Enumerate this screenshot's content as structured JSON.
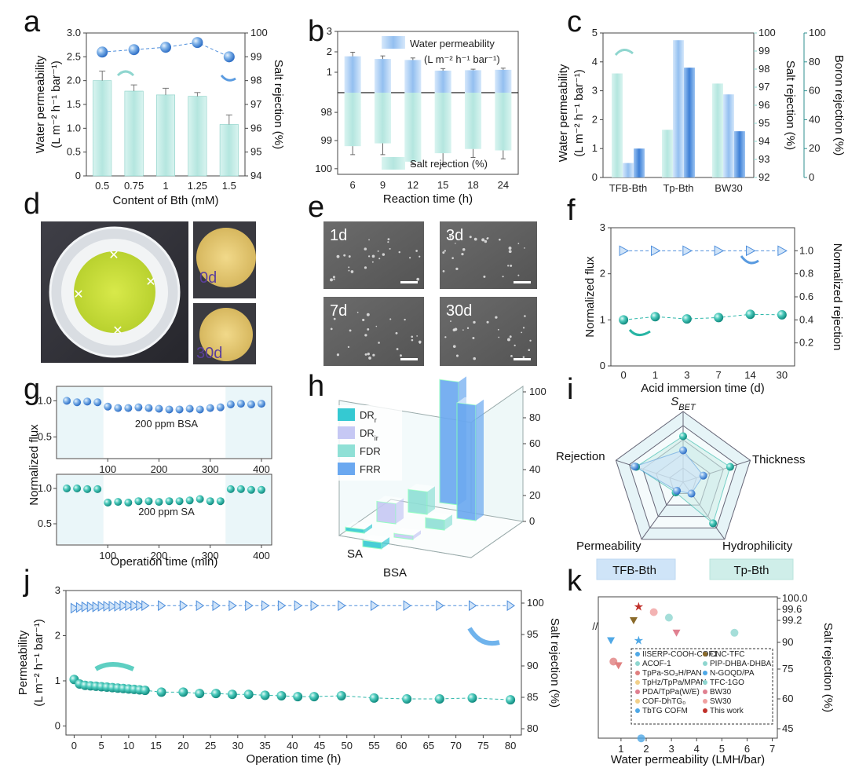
{
  "colors": {
    "barTeal": "#bfe9e4",
    "barTealEdge": "#88cfc6",
    "barBlue": "#a8cdf0",
    "blueDark": "#4f8fdc",
    "tealDark": "#2fb7aa",
    "sphereBlue": "#5a9be0",
    "sphereTeal": "#27b5a4",
    "axisTeal": "#8fd6cf",
    "axisDarkTeal": "#2f8f8f",
    "radarBlueFill": "#cfe4f8",
    "radarTealFill": "#cfeee9",
    "legendDRr": "#35c9d2",
    "legendDRir": "#c6c8f4",
    "legendFDR": "#8fe0d6",
    "legendFRR": "#6aa8f0"
  },
  "panels": {
    "a": "a",
    "b": "b",
    "c": "c",
    "d": "d",
    "e": "e",
    "f": "f",
    "g": "g",
    "h": "h",
    "i": "i",
    "j": "j",
    "k": "k"
  },
  "chart_data": [
    {
      "id": "a",
      "type": "bar",
      "xlabel": "Content of Bth (mM)",
      "ylabel_line1": "Water permeability",
      "ylabel_line2": "(L m⁻² h⁻¹ bar⁻¹)",
      "y2label": "Salt rejection (%)",
      "categories": [
        "0.5",
        "0.75",
        "1",
        "1.25",
        "1.5"
      ],
      "ylim": [
        0,
        3.0
      ],
      "yticks": [
        "0",
        "0.5",
        "1.0",
        "1.5",
        "2.0",
        "2.5",
        "3.0"
      ],
      "y2lim": [
        94,
        100
      ],
      "y2ticks": [
        "94",
        "95",
        "96",
        "97",
        "98",
        "99",
        "100"
      ],
      "permeability": [
        2.0,
        1.78,
        1.7,
        1.67,
        1.08
      ],
      "perm_err": [
        0.2,
        0.13,
        0.14,
        0.08,
        0.2
      ],
      "rejection": [
        99.2,
        99.3,
        99.4,
        99.6,
        99.0
      ]
    },
    {
      "id": "b",
      "type": "bar",
      "xlabel": "Reaction time (h)",
      "categories": [
        "6",
        "9",
        "12",
        "15",
        "18",
        "24"
      ],
      "yticks_top": [
        "1",
        "2",
        "3"
      ],
      "yticks_bottom": [
        "98",
        "99",
        "100"
      ],
      "legend_top_line1": "Water permeability",
      "legend_top_line2": "(L m⁻² h⁻¹ bar⁻¹)",
      "legend_bottom": "Salt rejection (%)",
      "permeability": [
        1.78,
        1.65,
        1.6,
        1.08,
        1.1,
        1.12
      ],
      "perm_err": [
        0.2,
        0.15,
        0.1,
        0.1,
        0.05,
        0.08
      ],
      "rejection": [
        99.2,
        99.1,
        99.75,
        99.45,
        99.3,
        99.35
      ],
      "rej_err": [
        0.3,
        0.4,
        0.1,
        0.4,
        0.3,
        0.3
      ]
    },
    {
      "id": "c",
      "type": "bar",
      "categories": [
        "TFB-Bth",
        "Tp-Bth",
        "BW30"
      ],
      "ylabel_line1": "Water permeability",
      "ylabel_line2": "(L m⁻² h⁻¹ bar⁻¹)",
      "y2label": "Salt rejection (%)",
      "y3label": "Boron rejection (%)",
      "ylim": [
        0,
        5
      ],
      "yticks": [
        "0",
        "1",
        "2",
        "3",
        "4",
        "5"
      ],
      "y2lim": [
        92,
        100
      ],
      "y2ticks": [
        "92",
        "93",
        "94",
        "95",
        "96",
        "97",
        "98",
        "99",
        "100"
      ],
      "y3lim": [
        0,
        100
      ],
      "y3ticks": [
        "0",
        "20",
        "40",
        "60",
        "80",
        "100"
      ],
      "permeability": [
        3.6,
        1.65,
        3.25
      ],
      "salt_rejection": [
        92.8,
        99.6,
        96.6
      ],
      "boron_rejection": [
        20,
        76,
        32
      ]
    },
    {
      "id": "f",
      "type": "line",
      "xlabel": "Acid immersion time (d)",
      "ylabel": "Normalized flux",
      "y2label": "Normalized rejection",
      "categories": [
        "0",
        "1",
        "3",
        "7",
        "14",
        "30"
      ],
      "ylim": [
        0,
        3
      ],
      "yticks": [
        "0",
        "1",
        "2",
        "3"
      ],
      "y2ticks": [
        "0.2",
        "0.4",
        "0.6",
        "0.8",
        "1.0"
      ],
      "flux": [
        1.0,
        1.07,
        1.02,
        1.05,
        1.12,
        1.11
      ],
      "rejection": [
        1.0,
        1.0,
        1.0,
        1.0,
        1.0,
        1.0
      ]
    },
    {
      "id": "g",
      "type": "scatter",
      "xlabel": "Operation time (min)",
      "ylabel": "Normalized flux",
      "xticks": [
        "100",
        "200",
        "300",
        "400"
      ],
      "yticks": [
        "0.5",
        "1.0"
      ],
      "top_label": "200 ppm BSA",
      "bottom_label": "200 ppm SA",
      "bsa_x": [
        20,
        40,
        60,
        80,
        100,
        120,
        140,
        160,
        180,
        200,
        220,
        240,
        260,
        280,
        300,
        320,
        340,
        360,
        380,
        400
      ],
      "bsa_y": [
        1.0,
        0.98,
        0.99,
        0.98,
        0.92,
        0.9,
        0.9,
        0.91,
        0.9,
        0.89,
        0.88,
        0.88,
        0.89,
        0.88,
        0.9,
        0.91,
        0.95,
        0.96,
        0.95,
        0.96
      ],
      "sa_x": [
        20,
        40,
        60,
        80,
        100,
        120,
        140,
        160,
        180,
        200,
        220,
        240,
        260,
        280,
        300,
        320,
        340,
        360,
        380,
        400
      ],
      "sa_y": [
        1.0,
        1.0,
        0.99,
        0.99,
        0.8,
        0.81,
        0.8,
        0.82,
        0.82,
        0.81,
        0.82,
        0.82,
        0.83,
        0.85,
        0.82,
        0.82,
        0.99,
        0.99,
        0.98,
        0.98
      ]
    },
    {
      "id": "h",
      "type": "bar",
      "categories": [
        "SA",
        "BSA"
      ],
      "series_names": [
        "DRr",
        "DRir",
        "FDR",
        "FRR"
      ],
      "legend": [
        "DR",
        "DR",
        "FDR",
        "FRR"
      ],
      "legend_sub": [
        "r",
        "ir",
        "",
        ""
      ],
      "zticks": [
        "0",
        "20",
        "40",
        "60",
        "80",
        "100"
      ],
      "SA": [
        3,
        16,
        18,
        98
      ],
      "BSA": [
        5,
        3,
        8,
        92
      ]
    },
    {
      "id": "i",
      "type": "radar",
      "axes": [
        "SBET",
        "Thickness",
        "Hydrophilicity",
        "Permeability",
        "Rejection"
      ],
      "axis_main": "S",
      "axis_sub": "BET",
      "legend": [
        "TFB-Bth",
        "Tp-Bth"
      ],
      "TFB-Bth": [
        0.45,
        0.3,
        0.2,
        0.15,
        0.72
      ],
      "Tp-Bth": [
        0.65,
        0.7,
        0.72,
        0.18,
        0.7
      ]
    },
    {
      "id": "j",
      "type": "line",
      "xlabel": "Operation time (h)",
      "ylabel_line1": "Permeability",
      "ylabel_line2": "(L m⁻² h⁻¹ bar⁻¹)",
      "y2label": "Salt rejection (%)",
      "xticks": [
        "0",
        "5",
        "10",
        "15",
        "20",
        "25",
        "30",
        "35",
        "40",
        "45",
        "50",
        "55",
        "60",
        "65",
        "70",
        "75",
        "80"
      ],
      "yticks": [
        "0",
        "1",
        "2",
        "3"
      ],
      "y2ticks": [
        "80",
        "85",
        "90",
        "95",
        "100"
      ],
      "perm_x": [
        0,
        1,
        2,
        3,
        4,
        5,
        6,
        7,
        8,
        9,
        10,
        11,
        12,
        13,
        16,
        20,
        23,
        26,
        29,
        32,
        35,
        38,
        41,
        44,
        49,
        55,
        61,
        67,
        73,
        80
      ],
      "perm_y": [
        1.03,
        0.93,
        0.9,
        0.89,
        0.88,
        0.87,
        0.86,
        0.85,
        0.84,
        0.83,
        0.82,
        0.81,
        0.8,
        0.79,
        0.75,
        0.75,
        0.72,
        0.72,
        0.7,
        0.7,
        0.68,
        0.67,
        0.65,
        0.65,
        0.67,
        0.62,
        0.6,
        0.6,
        0.62,
        0.58
      ],
      "rej_x": [
        0,
        1,
        2,
        3,
        4,
        5,
        6,
        7,
        8,
        9,
        10,
        11,
        12,
        13,
        16,
        20,
        23,
        26,
        29,
        32,
        35,
        38,
        41,
        44,
        49,
        55,
        61,
        67,
        73,
        80
      ],
      "rej_y": [
        99.2,
        99.3,
        99.4,
        99.4,
        99.4,
        99.5,
        99.5,
        99.5,
        99.5,
        99.6,
        99.6,
        99.6,
        99.6,
        99.6,
        99.6,
        99.6,
        99.6,
        99.6,
        99.6,
        99.6,
        99.6,
        99.6,
        99.6,
        99.6,
        99.6,
        99.6,
        99.6,
        99.6,
        99.6,
        99.6
      ]
    },
    {
      "id": "k",
      "type": "scatter",
      "xlabel": "Water permeability (LMH/bar)",
      "y2label": "Salt rejection (%)",
      "xticks": [
        "1",
        "2",
        "3",
        "4",
        "5",
        "6",
        "7"
      ],
      "y2ticks": [
        "45",
        "60",
        "75",
        "90",
        "99.2",
        "99.6",
        "100.0"
      ],
      "legend_left": [
        "IISERP-COOH-COF1",
        "ACOF-1",
        "TpPa-SO₃H/PAN",
        "TpHz/TpPa/MPAN",
        "PDA/TpPa(W/E)",
        "COF-DhTG₀",
        "TbTG COFM"
      ],
      "legend_right": [
        "CNC-TFC",
        "PIP-DHBA-DHBA",
        "N-GOQD/PA",
        "TFC-1GO",
        "BW30",
        "SW30",
        "This work"
      ]
    }
  ],
  "photos": {
    "d_day0": "0d",
    "d_day30": "30d",
    "e_1d": "1d",
    "e_3d": "3d",
    "e_7d": "7d",
    "e_30d": "30d"
  }
}
